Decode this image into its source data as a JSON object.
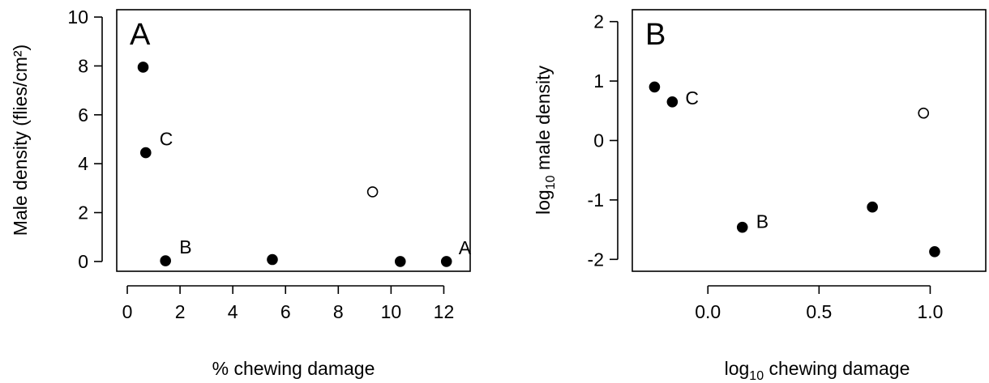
{
  "chart_data": [
    {
      "type": "scatter",
      "panel_label": "A",
      "xlabel": "% chewing damage",
      "ylabel": "Male density (flies/cm²)",
      "xlim": [
        -0.4,
        13.0
      ],
      "ylim": [
        -0.4,
        10.3
      ],
      "xticks": [
        "0",
        "2",
        "4",
        "6",
        "8",
        "10",
        "12"
      ],
      "yticks": [
        "0",
        "2",
        "4",
        "6",
        "8",
        "10"
      ],
      "grid": false,
      "points": [
        {
          "x": 0.6,
          "y": 7.95,
          "filled": true,
          "label": ""
        },
        {
          "x": 0.7,
          "y": 4.45,
          "filled": true,
          "label": "C"
        },
        {
          "x": 1.45,
          "y": 0.03,
          "filled": true,
          "label": "B"
        },
        {
          "x": 5.5,
          "y": 0.08,
          "filled": true,
          "label": ""
        },
        {
          "x": 9.3,
          "y": 2.85,
          "filled": false,
          "label": ""
        },
        {
          "x": 10.35,
          "y": 0.0,
          "filled": true,
          "label": ""
        },
        {
          "x": 12.1,
          "y": 0.0,
          "filled": true,
          "label": "A"
        }
      ]
    },
    {
      "type": "scatter",
      "panel_label": "B",
      "xlabel_prefix": "log",
      "xlabel_sub": "10",
      "xlabel_suffix": " chewing damage",
      "ylabel_prefix": "log",
      "ylabel_sub": "10",
      "ylabel_suffix": " male density",
      "xlim": [
        -0.34,
        1.25
      ],
      "ylim": [
        -2.2,
        2.2
      ],
      "xticks": [
        "0.0",
        "0.5",
        "1.0"
      ],
      "yticks": [
        "-2",
        "-1",
        "0",
        "1",
        "2"
      ],
      "grid": false,
      "points": [
        {
          "x": -0.24,
          "y": 0.9,
          "filled": true,
          "label": ""
        },
        {
          "x": -0.16,
          "y": 0.65,
          "filled": true,
          "label": "C"
        },
        {
          "x": 0.155,
          "y": -1.46,
          "filled": true,
          "label": "B"
        },
        {
          "x": 0.74,
          "y": -1.12,
          "filled": true,
          "label": ""
        },
        {
          "x": 0.97,
          "y": 0.46,
          "filled": false,
          "label": ""
        },
        {
          "x": 1.02,
          "y": -1.87,
          "filled": true,
          "label": ""
        }
      ]
    }
  ]
}
